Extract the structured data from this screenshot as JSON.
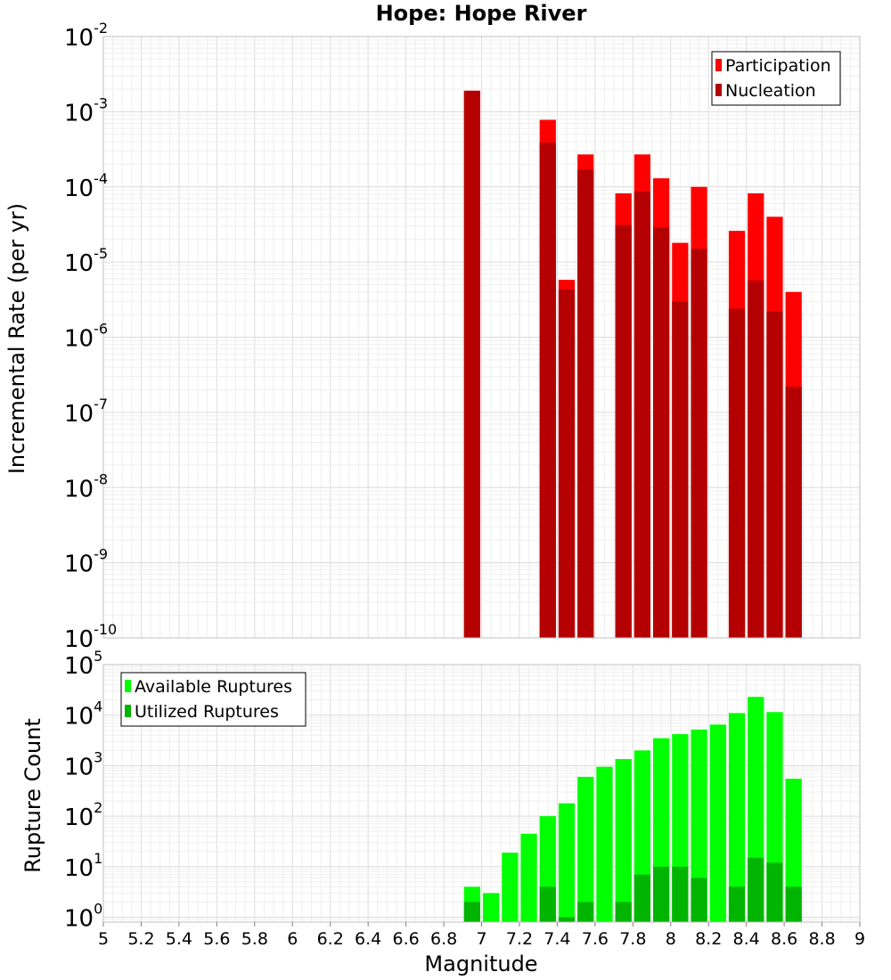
{
  "chart_data": [
    {
      "type": "bar",
      "title": "Hope: Hope River",
      "xlabel": "",
      "ylabel": "Incremental Rate (per yr)",
      "yscale": "log",
      "ylim": [
        1e-10,
        0.01
      ],
      "xlim": [
        5,
        9
      ],
      "grid": true,
      "legend_position": "top-right",
      "series": [
        {
          "name": "Participation",
          "color": "#ff0000",
          "x": [
            6.95,
            7.35,
            7.45,
            7.55,
            7.75,
            7.85,
            7.95,
            8.05,
            8.15,
            8.35,
            8.45,
            8.55,
            8.65
          ],
          "values": [
            0.0019,
            0.00078,
            5.8e-06,
            0.00027,
            8.2e-05,
            0.00027,
            0.00013,
            1.8e-05,
            0.0001,
            2.6e-05,
            8.2e-05,
            4e-05,
            4e-06
          ]
        },
        {
          "name": "Nucleation",
          "color": "#b40000",
          "x": [
            6.95,
            7.35,
            7.45,
            7.55,
            7.75,
            7.85,
            7.95,
            8.05,
            8.15,
            8.35,
            8.45,
            8.55,
            8.65
          ],
          "values": [
            0.0019,
            0.00039,
            4.3e-06,
            0.00017,
            3.1e-05,
            8.7e-05,
            2.9e-05,
            3e-06,
            1.5e-05,
            2.4e-06,
            5.7e-06,
            2.2e-06,
            2.2e-07
          ]
        }
      ],
      "yticks": [
        {
          "base": "10",
          "exp": "-10"
        },
        {
          "base": "10",
          "exp": "-9"
        },
        {
          "base": "10",
          "exp": "-8"
        },
        {
          "base": "10",
          "exp": "-7"
        },
        {
          "base": "10",
          "exp": "-6"
        },
        {
          "base": "10",
          "exp": "-5"
        },
        {
          "base": "10",
          "exp": "-4"
        },
        {
          "base": "10",
          "exp": "-3"
        },
        {
          "base": "10",
          "exp": "-2"
        }
      ]
    },
    {
      "type": "bar",
      "title": "",
      "xlabel": "Magnitude",
      "ylabel": "Rupture Count",
      "yscale": "log",
      "ylim": [
        0.8,
        100000
      ],
      "xlim": [
        5,
        9
      ],
      "grid": true,
      "legend_position": "top-left",
      "xticks": [
        "5",
        "5.2",
        "5.4",
        "5.6",
        "5.8",
        "6",
        "6.2",
        "6.4",
        "6.6",
        "6.8",
        "7",
        "7.2",
        "7.4",
        "7.6",
        "7.8",
        "8",
        "8.2",
        "8.4",
        "8.6",
        "8.8",
        "9"
      ],
      "series": [
        {
          "name": "Available Ruptures",
          "color": "#00ff00",
          "x": [
            6.95,
            7.05,
            7.15,
            7.25,
            7.35,
            7.45,
            7.55,
            7.65,
            7.75,
            7.85,
            7.95,
            8.05,
            8.15,
            8.25,
            8.35,
            8.45,
            8.55,
            8.65
          ],
          "values": [
            4,
            3,
            19,
            45,
            100,
            180,
            600,
            950,
            1350,
            2000,
            3500,
            4200,
            5200,
            6500,
            11000,
            23000,
            11500,
            550
          ]
        },
        {
          "name": "Utilized Ruptures",
          "color": "#00b400",
          "x": [
            6.95,
            7.35,
            7.45,
            7.55,
            7.75,
            7.85,
            7.95,
            8.05,
            8.15,
            8.35,
            8.45,
            8.55,
            8.65
          ],
          "values": [
            2,
            4,
            1,
            2,
            2,
            7,
            10,
            10,
            6,
            4,
            15,
            12,
            4
          ]
        }
      ],
      "yticks": [
        {
          "base": "10",
          "exp": "0"
        },
        {
          "base": "10",
          "exp": "1"
        },
        {
          "base": "10",
          "exp": "2"
        },
        {
          "base": "10",
          "exp": "3"
        },
        {
          "base": "10",
          "exp": "4"
        },
        {
          "base": "10",
          "exp": "5"
        }
      ]
    }
  ]
}
